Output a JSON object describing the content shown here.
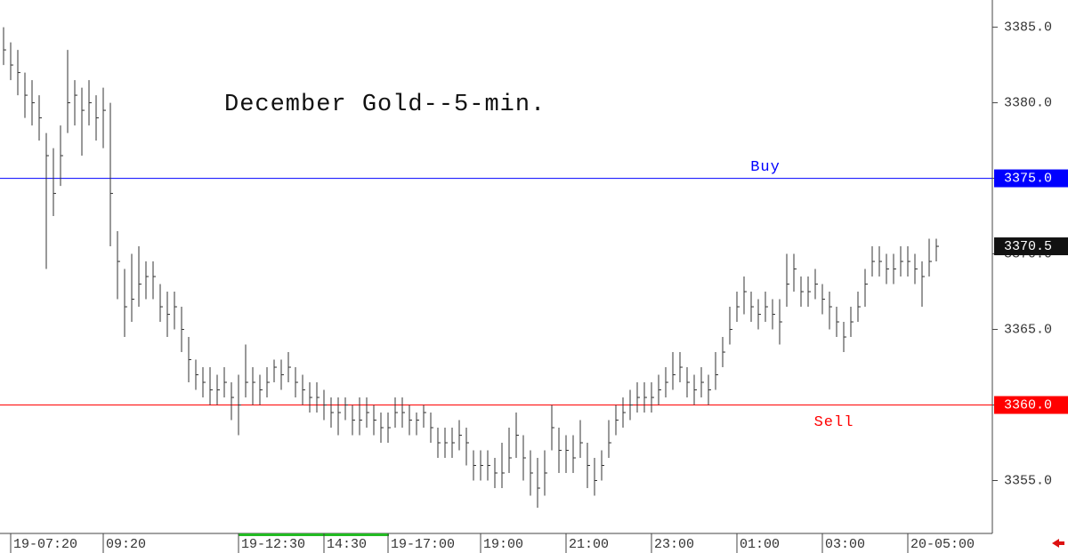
{
  "chart_data": {
    "type": "ohlc",
    "title": "December Gold--5-min.",
    "categories": [
      null,
      "19-07:20",
      null,
      null,
      null,
      null,
      null,
      null,
      null,
      null,
      null,
      null,
      null,
      null,
      "09:20",
      null,
      null,
      null,
      null,
      null,
      null,
      null,
      null,
      null,
      null,
      null,
      null,
      null,
      null,
      null,
      null,
      null,
      null,
      "19-12:30",
      null,
      null,
      null,
      null,
      null,
      null,
      null,
      null,
      null,
      null,
      null,
      "14:30",
      null,
      null,
      null,
      null,
      null,
      null,
      null,
      null,
      "19-17:00",
      null,
      null,
      null,
      null,
      null,
      null,
      null,
      null,
      null,
      null,
      null,
      null,
      "19:00",
      null,
      null,
      null,
      null,
      null,
      null,
      null,
      null,
      null,
      null,
      null,
      "21:00",
      null,
      null,
      null,
      null,
      null,
      null,
      null,
      null,
      null,
      null,
      null,
      "23:00",
      null,
      null,
      null,
      null,
      null,
      null,
      null,
      null,
      null,
      null,
      null,
      "01:00",
      null,
      null,
      null,
      null,
      null,
      null,
      null,
      null,
      null,
      null,
      null,
      "03:00",
      null,
      null,
      null,
      null,
      null,
      null,
      null,
      null,
      null,
      null,
      null,
      "20-05:00",
      null,
      null,
      null,
      null
    ],
    "high": [
      3385.0,
      3384.0,
      3383.5,
      3382.0,
      3381.5,
      3380.5,
      3378.0,
      3377.0,
      3378.5,
      3383.5,
      3381.5,
      3381.0,
      3381.5,
      3380.5,
      3381.0,
      3380.0,
      3371.5,
      3369.0,
      3370.0,
      3370.5,
      3369.5,
      3369.5,
      3368.0,
      3367.5,
      3367.5,
      3366.5,
      3364.5,
      3363.0,
      3362.5,
      3362.5,
      3362.0,
      3362.5,
      3361.5,
      3362.0,
      3364.0,
      3362.5,
      3362.0,
      3362.5,
      3363.0,
      3363.0,
      3363.5,
      3362.5,
      3362.0,
      3361.5,
      3361.5,
      3361.0,
      3360.5,
      3360.5,
      3360.5,
      3360.0,
      3360.5,
      3360.5,
      3360.0,
      3359.5,
      3359.5,
      3360.5,
      3360.5,
      3360.0,
      3359.5,
      3360.0,
      3359.5,
      3358.5,
      3358.5,
      3358.5,
      3359.0,
      3358.5,
      3357.0,
      3357.0,
      3357.0,
      3356.5,
      3357.5,
      3358.5,
      3359.5,
      3358.0,
      3357.0,
      3356.5,
      3357.0,
      3360.0,
      3358.5,
      3358.0,
      3358.0,
      3359.0,
      3357.5,
      3356.5,
      3357.0,
      3359.0,
      3360.0,
      3360.5,
      3361.0,
      3361.5,
      3361.5,
      3361.5,
      3362.0,
      3362.5,
      3363.5,
      3363.5,
      3362.5,
      3362.0,
      3362.5,
      3362.0,
      3363.5,
      3364.5,
      3366.5,
      3367.5,
      3368.5,
      3367.5,
      3367.0,
      3367.5,
      3367.0,
      3367.0,
      3370.0,
      3370.0,
      3368.5,
      3368.5,
      3369.0,
      3368.0,
      3367.5,
      3366.5,
      3365.5,
      3366.5,
      3367.5,
      3369.0,
      3370.5,
      3370.5,
      3370.0,
      3370.0,
      3370.5,
      3370.5,
      3370.0,
      3369.5,
      3371.0,
      3371.0
    ],
    "low": [
      3382.5,
      3381.5,
      3380.5,
      3379.0,
      3378.5,
      3377.5,
      3369.0,
      3372.5,
      3374.5,
      3378.0,
      3378.5,
      3376.5,
      3378.5,
      3377.5,
      3377.0,
      3370.5,
      3367.0,
      3364.5,
      3365.5,
      3366.5,
      3367.0,
      3367.0,
      3365.5,
      3364.5,
      3365.0,
      3363.5,
      3361.5,
      3361.0,
      3360.5,
      3360.0,
      3360.0,
      3360.5,
      3359.0,
      3358.0,
      3360.5,
      3360.0,
      3360.0,
      3360.5,
      3361.5,
      3361.0,
      3361.5,
      3360.5,
      3360.0,
      3359.5,
      3359.5,
      3359.0,
      3358.5,
      3358.0,
      3359.0,
      3358.0,
      3358.0,
      3358.5,
      3358.0,
      3357.5,
      3357.5,
      3358.5,
      3358.5,
      3358.0,
      3358.0,
      3358.5,
      3357.5,
      3356.5,
      3356.5,
      3356.5,
      3357.0,
      3356.0,
      3355.0,
      3355.0,
      3355.0,
      3354.5,
      3354.5,
      3355.5,
      3356.5,
      3355.0,
      3354.0,
      3353.2,
      3354.0,
      3357.0,
      3355.5,
      3355.5,
      3355.5,
      3356.5,
      3354.5,
      3354.0,
      3355.0,
      3356.5,
      3358.0,
      3358.5,
      3359.0,
      3359.5,
      3359.5,
      3359.5,
      3360.0,
      3360.5,
      3361.0,
      3361.5,
      3360.5,
      3360.0,
      3360.5,
      3360.0,
      3361.0,
      3362.5,
      3364.0,
      3365.5,
      3366.0,
      3365.5,
      3365.0,
      3365.5,
      3365.0,
      3364.0,
      3366.5,
      3367.5,
      3366.5,
      3366.5,
      3367.0,
      3366.0,
      3365.0,
      3364.5,
      3363.5,
      3364.5,
      3365.5,
      3366.5,
      3368.5,
      3368.5,
      3368.0,
      3368.0,
      3368.5,
      3368.5,
      3368.0,
      3366.5,
      3368.5,
      3369.5
    ],
    "close": [
      3383.5,
      3382.5,
      3382.0,
      3380.5,
      3380.0,
      3379.0,
      3376.5,
      3374.0,
      3376.5,
      3380.0,
      3380.5,
      3379.5,
      3380.0,
      3379.0,
      3379.5,
      3374.0,
      3369.5,
      3366.5,
      3367.0,
      3368.0,
      3368.5,
      3368.5,
      3366.5,
      3366.0,
      3366.5,
      3365.0,
      3363.0,
      3362.0,
      3361.5,
      3361.0,
      3361.0,
      3361.5,
      3360.5,
      3360.0,
      3361.5,
      3361.5,
      3361.0,
      3361.5,
      3362.5,
      3362.0,
      3362.5,
      3361.5,
      3361.0,
      3360.5,
      3360.5,
      3360.0,
      3359.5,
      3359.5,
      3360.0,
      3359.0,
      3359.0,
      3359.5,
      3359.0,
      3358.5,
      3358.5,
      3359.5,
      3359.5,
      3359.0,
      3359.0,
      3359.5,
      3358.5,
      3357.5,
      3357.5,
      3357.5,
      3358.0,
      3357.5,
      3356.0,
      3356.0,
      3356.0,
      3355.5,
      3355.5,
      3356.5,
      3358.0,
      3356.5,
      3355.5,
      3354.5,
      3355.5,
      3358.5,
      3357.0,
      3357.0,
      3356.5,
      3357.5,
      3356.0,
      3355.0,
      3356.0,
      3357.5,
      3359.0,
      3359.5,
      3360.0,
      3360.5,
      3360.5,
      3360.5,
      3361.0,
      3361.5,
      3362.0,
      3362.5,
      3361.5,
      3361.0,
      3361.5,
      3361.0,
      3362.0,
      3363.5,
      3365.0,
      3366.5,
      3367.5,
      3366.5,
      3366.0,
      3366.5,
      3366.0,
      3365.5,
      3368.0,
      3369.0,
      3367.5,
      3367.5,
      3368.0,
      3367.0,
      3366.5,
      3365.5,
      3364.5,
      3365.5,
      3366.5,
      3368.0,
      3369.5,
      3369.5,
      3369.0,
      3369.0,
      3369.5,
      3369.5,
      3369.0,
      3368.5,
      3369.5,
      3370.5
    ],
    "color": "#333333",
    "ylim": [
      3351.5,
      3386.8
    ],
    "yticks": [
      {
        "value": 3355,
        "label": "3355.0"
      },
      {
        "value": 3360,
        "label": "3360.0"
      },
      {
        "value": 3365,
        "label": "3365.0"
      },
      {
        "value": 3370,
        "label": "3370.0"
      },
      {
        "value": 3375,
        "label": "3375.0"
      },
      {
        "value": 3380,
        "label": "3380.0"
      },
      {
        "value": 3385,
        "label": "3385.0"
      }
    ],
    "reference_lines": [
      {
        "label": "Buy",
        "value": 3375,
        "value_label": "3375.0",
        "color": "#0000ff"
      },
      {
        "label": "Sell",
        "value": 3360,
        "value_label": "3360.0",
        "color": "#ff0000"
      }
    ],
    "last_price": {
      "value": 3370.5,
      "label": "3370.5"
    }
  }
}
